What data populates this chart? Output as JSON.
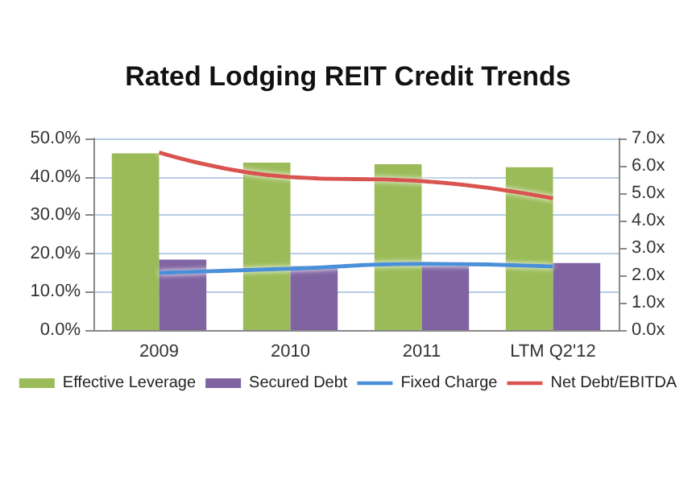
{
  "chart_data": {
    "type": "bar",
    "title": "Rated Lodging REIT Credit Trends",
    "categories": [
      "2009",
      "2010",
      "2011",
      "LTM Q2'12"
    ],
    "series": [
      {
        "name": "Effective Leverage",
        "color": "#9bbb59",
        "values": [
          46.1,
          43.7,
          43.3,
          42.5
        ]
      },
      {
        "name": "Secured Debt",
        "color": "#8064a2",
        "values": [
          18.4,
          16.7,
          16.7,
          17.5
        ]
      },
      {
        "name": "Fixed Charge",
        "type": "line",
        "axis": "y2",
        "color": "#4a90d9",
        "values": [
          2.09,
          2.24,
          2.42,
          2.32
        ]
      },
      {
        "name": "Net Debt/EBITDA",
        "type": "line",
        "axis": "y2",
        "color": "#d9534f",
        "values": [
          6.49,
          5.59,
          5.44,
          4.81
        ]
      }
    ],
    "ylim": [
      0,
      50
    ],
    "yticks": [
      {
        "value": 0,
        "label": "0.0%"
      },
      {
        "value": 10,
        "label": "10.0%"
      },
      {
        "value": 20,
        "label": "20.0%"
      },
      {
        "value": 30,
        "label": "30.0%"
      },
      {
        "value": 40,
        "label": "40.0%"
      },
      {
        "value": 50,
        "label": "50.0%"
      }
    ],
    "y2lim": [
      0,
      7
    ],
    "y2ticks": [
      {
        "value": 0,
        "label": "0.0x"
      },
      {
        "value": 1,
        "label": "1.0x"
      },
      {
        "value": 2,
        "label": "2.0x"
      },
      {
        "value": 3,
        "label": "3.0x"
      },
      {
        "value": 4,
        "label": "4.0x"
      },
      {
        "value": 5,
        "label": "5.0x"
      },
      {
        "value": 6,
        "label": "6.0x"
      },
      {
        "value": 7,
        "label": "7.0x"
      }
    ],
    "grid": "y",
    "legend": "bottom",
    "marker": "none"
  }
}
